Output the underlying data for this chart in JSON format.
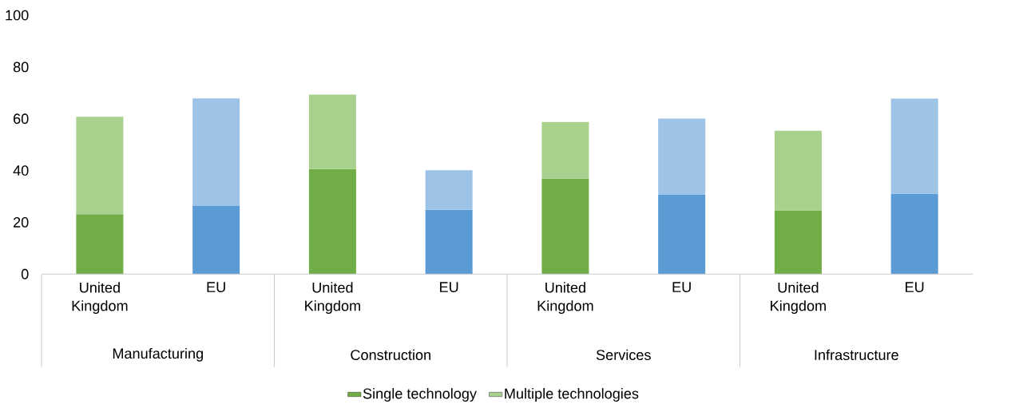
{
  "chart_data": {
    "type": "bar",
    "stacked": true,
    "categories": [
      "United Kingdom",
      "EU",
      "United Kingdom",
      "EU",
      "United Kingdom",
      "EU",
      "United Kingdom",
      "EU"
    ],
    "series": [
      {
        "name": "Single technology",
        "color": "#70ad47",
        "colors": [
          "#70ad47",
          "#5b9bd5",
          "#70ad47",
          "#5b9bd5",
          "#70ad47",
          "#5b9bd5",
          "#70ad47",
          "#5b9bd5"
        ],
        "values": [
          23.1,
          26.3,
          40.6,
          24.8,
          36.9,
          30.8,
          24.6,
          31.1
        ]
      },
      {
        "name": "Multiple technologies",
        "color": "#a9d18e",
        "colors": [
          "#a9d18e",
          "#9dc3e6",
          "#a9d18e",
          "#9dc3e6",
          "#a9d18e",
          "#9dc3e6",
          "#a9d18e",
          "#9dc3e6"
        ],
        "values": [
          37.7,
          41.6,
          28.7,
          15.3,
          21.9,
          29.3,
          30.8,
          36.7
        ]
      }
    ],
    "ylim": [
      0,
      100
    ],
    "yticks": [
      0,
      20,
      40,
      60,
      80,
      100
    ],
    "legend": "bottom",
    "annotations": [
      "Manufacturing",
      "Construction",
      "Services",
      "Infrastructure"
    ]
  }
}
